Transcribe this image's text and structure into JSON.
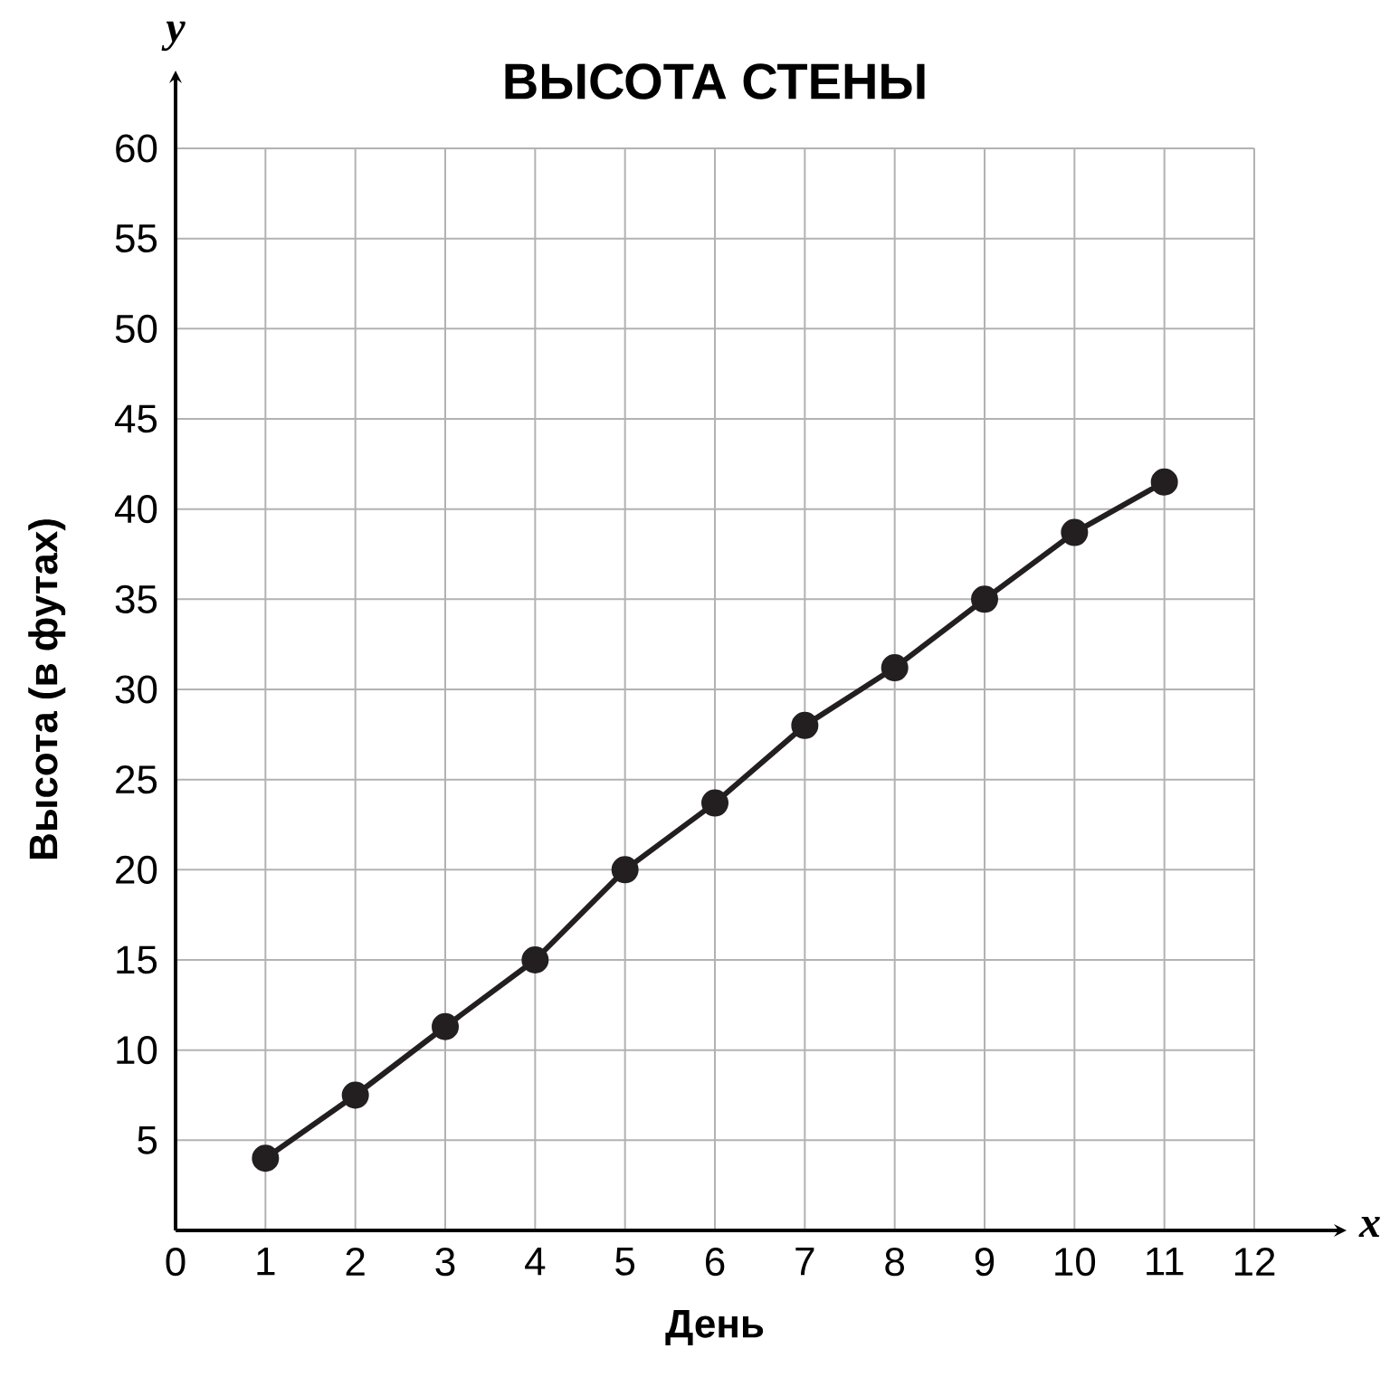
{
  "chart_data": {
    "type": "line",
    "title": "ВЫСОТА СТЕНЫ",
    "xlabel": "День",
    "ylabel": "Высота (в футах)",
    "annotations": [
      "y",
      "x"
    ],
    "x": [
      1,
      2,
      3,
      4,
      5,
      6,
      7,
      8,
      9,
      10,
      11
    ],
    "series": [
      {
        "color": "#231f20",
        "values": [
          4,
          7.5,
          11.3,
          15,
          20,
          23.7,
          28,
          31.2,
          35,
          38.7,
          41.5
        ]
      }
    ],
    "xlim": [
      0,
      12
    ],
    "ylim": [
      0,
      60
    ],
    "xticks": [
      0,
      1,
      2,
      3,
      4,
      5,
      6,
      7,
      8,
      9,
      10,
      11,
      12
    ],
    "yticks": [
      5,
      10,
      15,
      20,
      25,
      30,
      35,
      40,
      45,
      50,
      55,
      60
    ],
    "grid": true,
    "marker": "circle",
    "line_style": "solid"
  }
}
